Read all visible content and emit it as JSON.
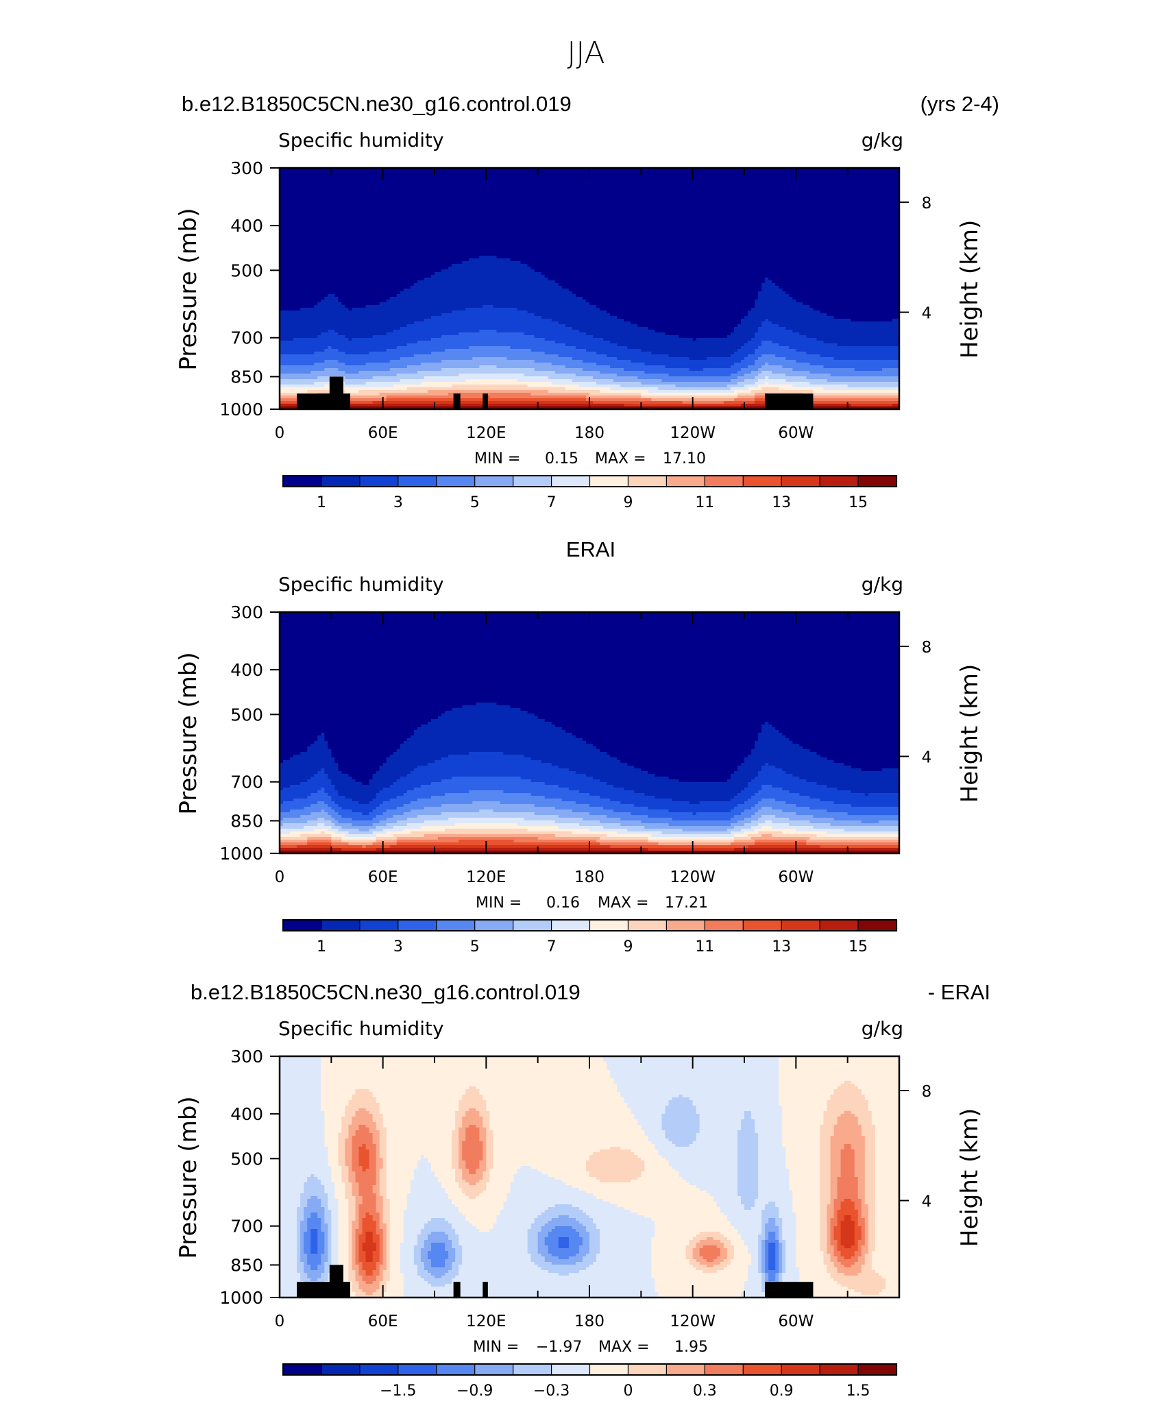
{
  "figure": {
    "title": "JJA"
  },
  "colors": {
    "seq_palette": [
      "#00008a",
      "#0428b4",
      "#1142d4",
      "#2e62e8",
      "#5787f0",
      "#86aaf4",
      "#b4cdf8",
      "#dde9fa",
      "#fff0e0",
      "#fdd4bc",
      "#f9aa8c",
      "#f27c5e",
      "#e9532e",
      "#d6361a",
      "#b71e10",
      "#830606"
    ],
    "diff_palette": [
      "#00008a",
      "#0428b4",
      "#1142d4",
      "#2e62e8",
      "#5787f0",
      "#86aaf4",
      "#b4cdf8",
      "#dde9fa",
      "#fff0e0",
      "#fdd4bc",
      "#f9aa8c",
      "#f27c5e",
      "#e9532e",
      "#d6361a",
      "#b71e10",
      "#830606"
    ],
    "topography": "#000000"
  },
  "chart_data": [
    {
      "type": "heatmap",
      "header_left": "b.e12.B1850C5CN.ne30_g16.control.019",
      "header_right": "(yrs 2-4)",
      "title": "",
      "variable": "Specific humidity",
      "units": "g/kg",
      "ylabel": "Pressure (mb)",
      "ylabel_right": "Height (km)",
      "y_scale": "log",
      "ylim": [
        1000,
        300
      ],
      "xlim": [
        0,
        360
      ],
      "x_ticks": [
        "0",
        "60E",
        "120E",
        "180",
        "120W",
        "60W"
      ],
      "y_ticks": [
        "300",
        "400",
        "500",
        "700",
        "850",
        "1000"
      ],
      "y_ticks_right": [
        "8",
        "4"
      ],
      "stats": {
        "min_label": "MIN =",
        "min": "0.15",
        "max_label": "MAX =",
        "max": "17.10"
      },
      "colorbar": {
        "labels": [
          "1",
          "3",
          "5",
          "7",
          "9",
          "11",
          "13",
          "15"
        ],
        "levels": [
          0,
          1,
          2,
          3,
          4,
          5,
          6,
          7,
          8,
          9,
          10,
          11,
          12,
          13,
          14,
          15,
          16
        ]
      },
      "profile": {
        "lon": [
          0,
          20,
          30,
          40,
          60,
          80,
          100,
          120,
          140,
          160,
          180,
          200,
          220,
          240,
          260,
          275,
          282,
          300,
          320,
          340,
          360
        ],
        "scale": [
          0.92,
          0.95,
          1.05,
          0.93,
          0.98,
          1.12,
          1.22,
          1.28,
          1.24,
          1.12,
          0.98,
          0.85,
          0.76,
          0.7,
          0.72,
          0.95,
          1.15,
          1.0,
          0.88,
          0.84,
          0.86
        ],
        "q_surface": 16.4,
        "scale_height_mb": 150
      }
    },
    {
      "type": "heatmap",
      "header_left": "",
      "header_center": "ERAI",
      "header_right": "",
      "variable": "Specific humidity",
      "units": "g/kg",
      "ylabel": "Pressure (mb)",
      "ylabel_right": "Height (km)",
      "y_scale": "log",
      "ylim": [
        1000,
        300
      ],
      "xlim": [
        0,
        360
      ],
      "x_ticks": [
        "0",
        "60E",
        "120E",
        "180",
        "120W",
        "60W"
      ],
      "y_ticks": [
        "300",
        "400",
        "500",
        "700",
        "850",
        "1000"
      ],
      "y_ticks_right": [
        "8",
        "4"
      ],
      "stats": {
        "min_label": "MIN =",
        "min": "0.16",
        "max_label": "MAX =",
        "max": "17.21"
      },
      "colorbar": {
        "labels": [
          "1",
          "3",
          "5",
          "7",
          "9",
          "11",
          "13",
          "15"
        ],
        "levels": [
          0,
          1,
          2,
          3,
          4,
          5,
          6,
          7,
          8,
          9,
          10,
          11,
          12,
          13,
          14,
          15,
          16
        ]
      },
      "profile": {
        "lon": [
          0,
          15,
          25,
          35,
          50,
          60,
          80,
          100,
          120,
          140,
          160,
          180,
          200,
          220,
          240,
          260,
          275,
          282,
          300,
          320,
          340,
          360
        ],
        "scale": [
          0.86,
          0.95,
          1.08,
          0.8,
          0.68,
          0.86,
          1.1,
          1.22,
          1.26,
          1.22,
          1.12,
          1.0,
          0.86,
          0.76,
          0.7,
          0.72,
          0.96,
          1.15,
          1.0,
          0.88,
          0.8,
          0.82
        ],
        "q_surface": 16.6,
        "scale_height_mb": 150
      }
    },
    {
      "type": "heatmap",
      "header_left": "b.e12.B1850C5CN.ne30_g16.control.019",
      "header_right": "- ERAI",
      "variable": "Specific humidity",
      "units": "g/kg",
      "ylabel": "Pressure (mb)",
      "ylabel_right": "Height (km)",
      "y_scale": "log",
      "ylim": [
        1000,
        300
      ],
      "xlim": [
        0,
        360
      ],
      "x_ticks": [
        "0",
        "60E",
        "120E",
        "180",
        "120W",
        "60W"
      ],
      "y_ticks": [
        "300",
        "400",
        "500",
        "700",
        "850",
        "1000"
      ],
      "y_ticks_right": [
        "8",
        "4"
      ],
      "stats": {
        "min_label": "MIN =",
        "min": "−1.97",
        "max_label": "MAX =",
        "max": "1.95"
      },
      "colorbar": {
        "labels": [
          "−1.5",
          "−0.9",
          "−0.3",
          "0",
          "0.3",
          "0.9",
          "1.5"
        ],
        "levels": [
          -2.4,
          -2.1,
          -1.8,
          -1.5,
          -1.2,
          -0.9,
          -0.6,
          -0.3,
          0,
          0.3,
          0.6,
          0.9,
          1.2,
          1.5,
          1.8,
          2.1,
          2.4
        ]
      },
      "anomalies": [
        {
          "lon": 20,
          "p": 760,
          "amp": -1.3,
          "wlon": 9,
          "wp": 180
        },
        {
          "lon": 52,
          "p": 780,
          "amp": 1.65,
          "wlon": 10,
          "wp": 200
        },
        {
          "lon": 48,
          "p": 480,
          "amp": 1.1,
          "wlon": 12,
          "wp": 110
        },
        {
          "lon": 92,
          "p": 810,
          "amp": -1.1,
          "wlon": 12,
          "wp": 120
        },
        {
          "lon": 112,
          "p": 480,
          "amp": 1.2,
          "wlon": 10,
          "wp": 110
        },
        {
          "lon": 165,
          "p": 760,
          "amp": -1.25,
          "wlon": 18,
          "wp": 110
        },
        {
          "lon": 195,
          "p": 520,
          "amp": 0.55,
          "wlon": 22,
          "wp": 60
        },
        {
          "lon": 250,
          "p": 800,
          "amp": 1.15,
          "wlon": 12,
          "wp": 70
        },
        {
          "lon": 233,
          "p": 420,
          "amp": -0.55,
          "wlon": 14,
          "wp": 70
        },
        {
          "lon": 286,
          "p": 820,
          "amp": -1.4,
          "wlon": 6,
          "wp": 160
        },
        {
          "lon": 272,
          "p": 520,
          "amp": -0.6,
          "wlon": 8,
          "wp": 150
        },
        {
          "lon": 330,
          "p": 730,
          "amp": 1.7,
          "wlon": 12,
          "wp": 160
        },
        {
          "lon": 330,
          "p": 470,
          "amp": 0.8,
          "wlon": 16,
          "wp": 130
        },
        {
          "lon": 345,
          "p": 940,
          "amp": 0.5,
          "wlon": 10,
          "wp": 60
        }
      ]
    }
  ]
}
